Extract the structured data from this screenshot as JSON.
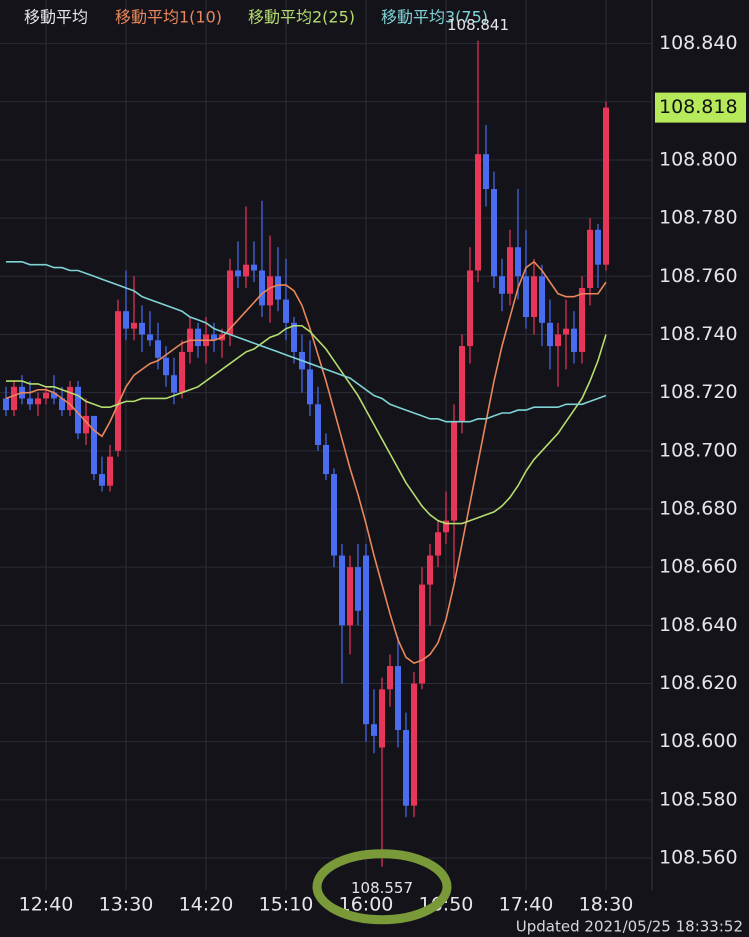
{
  "chart_data": {
    "type": "candlestick",
    "legend_title": "移動平均",
    "up_color": "#e8365a",
    "down_color": "#4a6df0",
    "grid": true,
    "categories": [
      null,
      null,
      null,
      null,
      null,
      "12:40",
      null,
      null,
      null,
      null,
      null,
      null,
      null,
      null,
      null,
      "13:30",
      null,
      null,
      null,
      null,
      null,
      null,
      null,
      null,
      null,
      "14:20",
      null,
      null,
      null,
      null,
      null,
      null,
      null,
      null,
      null,
      "15:10",
      null,
      null,
      null,
      null,
      null,
      null,
      null,
      null,
      null,
      "16:00",
      null,
      null,
      null,
      null,
      null,
      null,
      null,
      null,
      null,
      "16:50",
      null,
      null,
      null,
      null,
      null,
      null,
      null,
      null,
      null,
      "17:40",
      null,
      null,
      null,
      null,
      null,
      null,
      null,
      null,
      null,
      "18:30"
    ],
    "open": [
      108.718,
      108.714,
      108.722,
      108.718,
      108.716,
      108.718,
      108.72,
      108.718,
      108.714,
      108.722,
      108.706,
      108.712,
      108.692,
      108.688,
      108.7,
      108.748,
      108.742,
      108.744,
      108.74,
      108.738,
      108.732,
      108.726,
      108.72,
      108.734,
      108.742,
      108.736,
      108.74,
      108.738,
      108.74,
      108.762,
      108.76,
      108.764,
      108.762,
      108.75,
      108.76,
      108.752,
      108.744,
      108.734,
      108.728,
      108.716,
      108.702,
      108.692,
      108.664,
      108.64,
      108.66,
      108.664,
      108.606,
      108.598,
      108.618,
      108.626,
      108.604,
      108.578,
      108.62,
      108.654,
      108.664,
      108.672,
      108.676,
      108.71,
      108.736,
      108.762,
      108.802,
      108.79,
      108.76,
      108.754,
      108.77,
      108.76,
      108.746,
      108.76,
      108.744,
      108.736,
      108.74,
      108.742,
      108.734,
      108.756,
      108.776,
      108.764
    ],
    "high": [
      108.722,
      108.724,
      108.726,
      108.724,
      108.72,
      108.722,
      108.726,
      108.722,
      108.724,
      108.724,
      108.718,
      108.712,
      108.698,
      108.702,
      108.752,
      108.762,
      108.76,
      108.75,
      108.748,
      108.744,
      108.736,
      108.732,
      108.738,
      108.746,
      108.744,
      108.746,
      108.744,
      108.742,
      108.766,
      108.772,
      108.784,
      108.772,
      108.786,
      108.774,
      108.77,
      108.766,
      108.746,
      108.74,
      108.738,
      108.722,
      108.706,
      108.694,
      108.668,
      108.664,
      108.668,
      108.668,
      108.618,
      108.622,
      108.63,
      108.636,
      108.61,
      108.624,
      108.66,
      108.668,
      108.676,
      108.686,
      108.716,
      108.74,
      108.77,
      108.841,
      108.812,
      108.796,
      108.766,
      108.776,
      108.79,
      108.776,
      108.766,
      108.764,
      108.752,
      108.744,
      108.752,
      108.748,
      108.76,
      108.78,
      108.778,
      108.82
    ],
    "low": [
      108.712,
      108.712,
      108.716,
      108.714,
      108.712,
      108.716,
      108.716,
      108.712,
      108.712,
      108.704,
      108.702,
      108.69,
      108.686,
      108.686,
      108.698,
      108.738,
      108.738,
      108.734,
      108.736,
      108.728,
      108.722,
      108.716,
      108.718,
      108.73,
      108.732,
      108.73,
      108.734,
      108.732,
      108.736,
      108.756,
      108.756,
      108.758,
      108.746,
      108.744,
      108.748,
      108.738,
      108.73,
      108.72,
      108.712,
      108.7,
      108.69,
      108.66,
      108.62,
      108.63,
      108.64,
      108.6,
      108.596,
      108.557,
      108.612,
      108.598,
      108.574,
      108.574,
      108.618,
      108.64,
      108.66,
      108.668,
      108.656,
      108.706,
      108.73,
      108.758,
      108.784,
      108.756,
      108.748,
      108.75,
      108.752,
      108.742,
      108.74,
      108.736,
      108.728,
      108.722,
      108.728,
      108.73,
      108.73,
      108.75,
      108.756,
      108.762
    ],
    "close": [
      108.714,
      108.722,
      108.718,
      108.716,
      108.718,
      108.72,
      108.718,
      108.714,
      108.722,
      108.706,
      108.712,
      108.692,
      108.688,
      108.698,
      108.748,
      108.742,
      108.744,
      108.74,
      108.738,
      108.732,
      108.726,
      108.72,
      108.734,
      108.742,
      108.736,
      108.74,
      108.738,
      108.74,
      108.762,
      108.76,
      108.764,
      108.762,
      108.75,
      108.76,
      108.752,
      108.744,
      108.734,
      108.728,
      108.716,
      108.702,
      108.692,
      108.664,
      108.64,
      108.66,
      108.645,
      108.606,
      108.602,
      108.618,
      108.626,
      108.604,
      108.578,
      108.62,
      108.654,
      108.664,
      108.672,
      108.676,
      108.71,
      108.736,
      108.762,
      108.802,
      108.79,
      108.76,
      108.754,
      108.77,
      108.76,
      108.746,
      108.76,
      108.744,
      108.736,
      108.74,
      108.742,
      108.734,
      108.756,
      108.776,
      108.764,
      108.818
    ],
    "series": [
      {
        "name": "移動平均1(10)",
        "color": "#e8875c",
        "values": [
          108.718,
          108.719,
          108.72,
          108.72,
          108.721,
          108.721,
          108.72,
          108.718,
          108.716,
          108.713,
          108.71,
          108.707,
          108.705,
          108.71,
          108.716,
          108.722,
          108.726,
          108.728,
          108.73,
          108.731,
          108.733,
          108.735,
          108.737,
          108.738,
          108.738,
          108.738,
          108.738,
          108.739,
          108.742,
          108.745,
          108.748,
          108.751,
          108.754,
          108.756,
          108.757,
          108.757,
          108.755,
          108.75,
          108.742,
          108.733,
          108.724,
          108.714,
          108.704,
          108.694,
          108.685,
          108.675,
          108.664,
          108.654,
          108.644,
          108.635,
          108.629,
          108.627,
          108.628,
          108.63,
          108.634,
          108.642,
          108.654,
          108.668,
          108.682,
          108.696,
          108.71,
          108.724,
          108.736,
          108.746,
          108.756,
          108.763,
          108.765,
          108.762,
          108.758,
          108.754,
          108.753,
          108.753,
          108.754,
          108.754,
          108.754,
          108.758
        ]
      },
      {
        "name": "移動平均2(25)",
        "color": "#b5dd6e",
        "values": [
          108.724,
          108.724,
          108.724,
          108.723,
          108.723,
          108.722,
          108.722,
          108.721,
          108.72,
          108.719,
          108.717,
          108.716,
          108.715,
          108.715,
          108.716,
          108.717,
          108.717,
          108.718,
          108.718,
          108.718,
          108.718,
          108.719,
          108.72,
          108.721,
          108.722,
          108.724,
          108.726,
          108.728,
          108.73,
          108.732,
          108.734,
          108.735,
          108.737,
          108.739,
          108.74,
          108.742,
          108.743,
          108.743,
          108.741,
          108.738,
          108.735,
          108.731,
          108.727,
          108.723,
          108.719,
          108.714,
          108.709,
          108.704,
          108.699,
          108.694,
          108.689,
          108.685,
          108.681,
          108.678,
          108.676,
          108.675,
          108.675,
          108.675,
          108.676,
          108.677,
          108.678,
          108.679,
          108.681,
          108.684,
          108.688,
          108.693,
          108.697,
          108.7,
          108.703,
          108.706,
          108.71,
          108.714,
          108.718,
          108.724,
          108.731,
          108.74
        ]
      },
      {
        "name": "移動平均3(75)",
        "color": "#7fd3d6",
        "values": [
          108.765,
          108.765,
          108.765,
          108.764,
          108.764,
          108.764,
          108.763,
          108.763,
          108.762,
          108.762,
          108.761,
          108.76,
          108.759,
          108.758,
          108.757,
          108.756,
          108.755,
          108.753,
          108.752,
          108.751,
          108.75,
          108.749,
          108.748,
          108.746,
          108.745,
          108.744,
          108.742,
          108.741,
          108.74,
          108.739,
          108.738,
          108.737,
          108.736,
          108.735,
          108.734,
          108.733,
          108.732,
          108.731,
          108.73,
          108.729,
          108.728,
          108.727,
          108.726,
          108.725,
          108.723,
          108.721,
          108.719,
          108.718,
          108.716,
          108.715,
          108.714,
          108.713,
          108.712,
          108.711,
          108.711,
          108.71,
          108.71,
          108.71,
          108.71,
          108.711,
          108.711,
          108.712,
          108.713,
          108.713,
          108.714,
          108.714,
          108.715,
          108.715,
          108.715,
          108.715,
          108.716,
          108.716,
          108.716,
          108.717,
          108.718,
          108.719
        ]
      }
    ],
    "ylim": [
      108.549,
      108.855
    ],
    "yticks": [
      {
        "value": 108.56,
        "label": "108.560"
      },
      {
        "value": 108.58,
        "label": "108.580"
      },
      {
        "value": 108.6,
        "label": "108.600"
      },
      {
        "value": 108.62,
        "label": "108.620"
      },
      {
        "value": 108.64,
        "label": "108.640"
      },
      {
        "value": 108.66,
        "label": "108.660"
      },
      {
        "value": 108.68,
        "label": "108.680"
      },
      {
        "value": 108.7,
        "label": "108.700"
      },
      {
        "value": 108.72,
        "label": "108.720"
      },
      {
        "value": 108.74,
        "label": "108.740"
      },
      {
        "value": 108.76,
        "label": "108.760"
      },
      {
        "value": 108.78,
        "label": "108.780"
      },
      {
        "value": 108.8,
        "label": "108.800"
      },
      {
        "value": 108.82,
        "label": "108.820"
      },
      {
        "value": 108.84,
        "label": "108.840"
      }
    ],
    "high_label": "108.841",
    "low_label": "108.557",
    "last_price_label": "108.818",
    "footer": "Updated  2021/05/25 18:33:52"
  }
}
